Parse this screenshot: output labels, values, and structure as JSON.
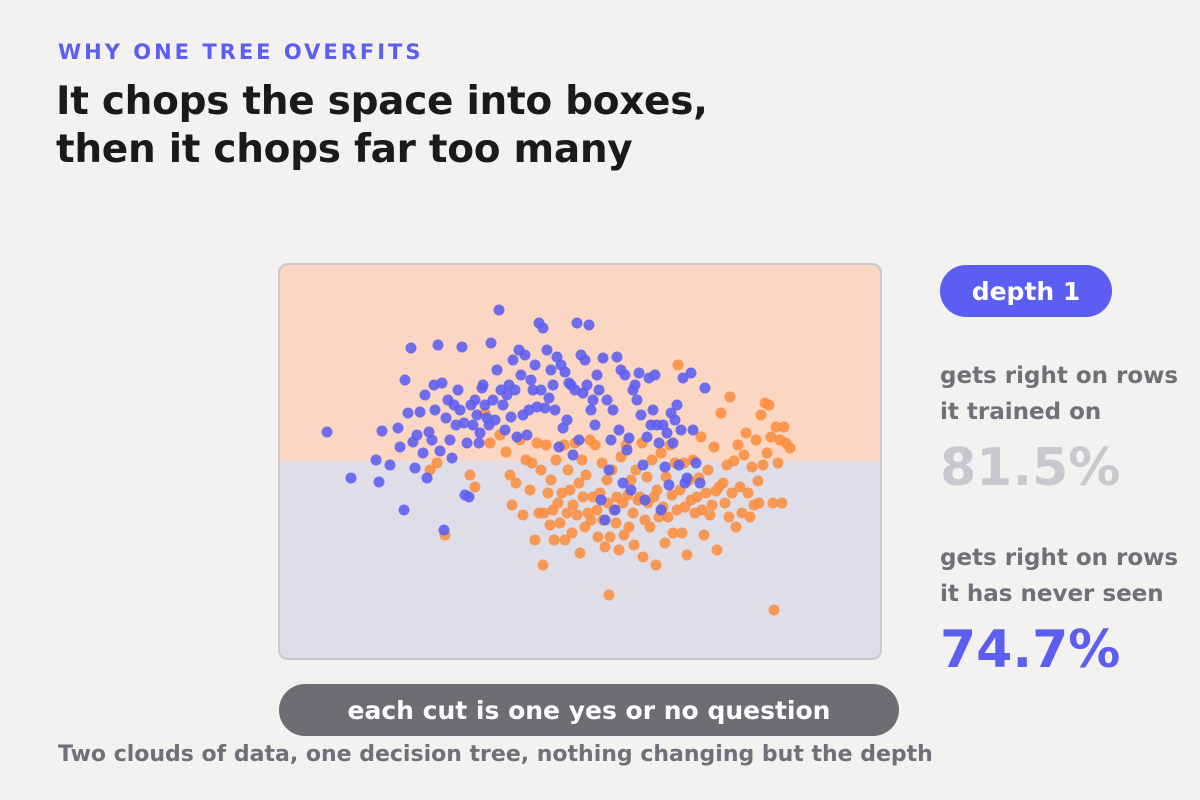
{
  "eyebrow": "WHY ONE TREE OVERFITS",
  "title": {
    "line1": "It chops the space into boxes,",
    "line2": "then it chops far too many"
  },
  "depth_label": "depth 1",
  "train": {
    "label_line1": "gets right on rows",
    "label_line2": "it trained on",
    "value": "81.5%"
  },
  "test": {
    "label_line1": "gets right on rows",
    "label_line2": "it has never seen",
    "value": "74.7%"
  },
  "caption": "each cut is one yes or no question",
  "footer": "Two clouds of data, one decision tree, nothing changing but the depth",
  "colors": {
    "class_a": "#5b5ef0",
    "class_b": "#fb8e3f",
    "region_a": "#fbd6c2",
    "region_b": "#dfdde8",
    "accent": "#5b5ef0",
    "muted": "#c9c8cf"
  },
  "chart_data": {
    "type": "scatter",
    "xlim": [
      0,
      600
    ],
    "ylim": [
      0,
      393
    ],
    "split": {
      "axis": "y",
      "threshold": 196
    },
    "series": [
      {
        "class": "a",
        "points": [
          [
            47,
            167
          ],
          [
            71,
            213
          ],
          [
            96,
            195
          ],
          [
            99,
            217
          ],
          [
            102,
            166
          ],
          [
            110,
            200
          ],
          [
            118,
            163
          ],
          [
            120,
            182
          ],
          [
            124,
            245
          ],
          [
            125,
            115
          ],
          [
            128,
            148
          ],
          [
            131,
            83
          ],
          [
            133,
            177
          ],
          [
            135,
            203
          ],
          [
            137,
            170
          ],
          [
            140,
            147
          ],
          [
            143,
            188
          ],
          [
            145,
            130
          ],
          [
            147,
            213
          ],
          [
            149,
            167
          ],
          [
            152,
            175
          ],
          [
            154,
            120
          ],
          [
            155,
            145
          ],
          [
            158,
            80
          ],
          [
            160,
            186
          ],
          [
            162,
            118
          ],
          [
            164,
            265
          ],
          [
            166,
            153
          ],
          [
            168,
            135
          ],
          [
            170,
            175
          ],
          [
            172,
            193
          ],
          [
            174,
            140
          ],
          [
            176,
            160
          ],
          [
            178,
            125
          ],
          [
            180,
            145
          ],
          [
            182,
            82
          ],
          [
            184,
            158
          ],
          [
            185,
            230
          ],
          [
            187,
            178
          ],
          [
            189,
            232
          ],
          [
            191,
            140
          ],
          [
            193,
            160
          ],
          [
            195,
            135
          ],
          [
            197,
            150
          ],
          [
            199,
            178
          ],
          [
            200,
            168
          ],
          [
            202,
            123
          ],
          [
            203,
            120
          ],
          [
            205,
            140
          ],
          [
            207,
            153
          ],
          [
            209,
            160
          ],
          [
            211,
            78
          ],
          [
            213,
            135
          ],
          [
            215,
            155
          ],
          [
            217,
            105
          ],
          [
            219,
            45
          ],
          [
            221,
            125
          ],
          [
            223,
            140
          ],
          [
            225,
            165
          ],
          [
            227,
            130
          ],
          [
            229,
            120
          ],
          [
            231,
            152
          ],
          [
            233,
            95
          ],
          [
            235,
            125
          ],
          [
            237,
            172
          ],
          [
            239,
            85
          ],
          [
            241,
            110
          ],
          [
            243,
            150
          ],
          [
            245,
            90
          ],
          [
            247,
            170
          ],
          [
            249,
            145
          ],
          [
            251,
            115
          ],
          [
            253,
            125
          ],
          [
            255,
            100
          ],
          [
            257,
            142
          ],
          [
            259,
            58
          ],
          [
            261,
            125
          ],
          [
            263,
            63
          ],
          [
            265,
            143
          ],
          [
            267,
            85
          ],
          [
            269,
            133
          ],
          [
            271,
            105
          ],
          [
            273,
            120
          ],
          [
            275,
            145
          ],
          [
            277,
            92
          ],
          [
            279,
            182
          ],
          [
            281,
            100
          ],
          [
            283,
            163
          ],
          [
            285,
            107
          ],
          [
            287,
            155
          ],
          [
            289,
            118
          ],
          [
            291,
            120
          ],
          [
            293,
            190
          ],
          [
            295,
            125
          ],
          [
            297,
            58
          ],
          [
            299,
            175
          ],
          [
            301,
            90
          ],
          [
            303,
            128
          ],
          [
            305,
            95
          ],
          [
            307,
            120
          ],
          [
            309,
            60
          ],
          [
            311,
            145
          ],
          [
            313,
            135
          ],
          [
            315,
            160
          ],
          [
            317,
            110
          ],
          [
            319,
            125
          ],
          [
            321,
            235
          ],
          [
            323,
            93
          ],
          [
            325,
            255
          ],
          [
            327,
            135
          ],
          [
            329,
            205
          ],
          [
            331,
            175
          ],
          [
            333,
            145
          ],
          [
            335,
            245
          ],
          [
            337,
            92
          ],
          [
            339,
            165
          ],
          [
            341,
            105
          ],
          [
            343,
            218
          ],
          [
            345,
            110
          ],
          [
            347,
            185
          ],
          [
            349,
            173
          ],
          [
            351,
            225
          ],
          [
            353,
            125
          ],
          [
            355,
            120
          ],
          [
            357,
            135
          ],
          [
            359,
            108
          ],
          [
            361,
            150
          ],
          [
            363,
            200
          ],
          [
            365,
            235
          ],
          [
            367,
            172
          ],
          [
            369,
            113
          ],
          [
            371,
            160
          ],
          [
            373,
            145
          ],
          [
            375,
            110
          ],
          [
            377,
            160
          ],
          [
            379,
            178
          ],
          [
            381,
            245
          ],
          [
            383,
            160
          ],
          [
            385,
            202
          ],
          [
            387,
            168
          ],
          [
            389,
            220
          ],
          [
            391,
            148
          ],
          [
            393,
            178
          ],
          [
            395,
            155
          ],
          [
            397,
            140
          ],
          [
            399,
            200
          ],
          [
            401,
            165
          ],
          [
            403,
            113
          ],
          [
            405,
            218
          ],
          [
            407,
            213
          ],
          [
            411,
            108
          ],
          [
            413,
            165
          ],
          [
            416,
            198
          ],
          [
            420,
            218
          ],
          [
            425,
            123
          ]
        ]
      },
      {
        "class": "b",
        "points": [
          [
            150,
            205
          ],
          [
            157,
            198
          ],
          [
            165,
            270
          ],
          [
            190,
            210
          ],
          [
            195,
            222
          ],
          [
            205,
            148
          ],
          [
            210,
            178
          ],
          [
            220,
            170
          ],
          [
            226,
            187
          ],
          [
            230,
            210
          ],
          [
            232,
            240
          ],
          [
            236,
            218
          ],
          [
            240,
            175
          ],
          [
            243,
            250
          ],
          [
            246,
            195
          ],
          [
            250,
            225
          ],
          [
            252,
            198
          ],
          [
            255,
            275
          ],
          [
            257,
            178
          ],
          [
            259,
            248
          ],
          [
            261,
            205
          ],
          [
            263,
            300
          ],
          [
            264,
            248
          ],
          [
            266,
            180
          ],
          [
            268,
            228
          ],
          [
            270,
            260
          ],
          [
            271,
            215
          ],
          [
            273,
            245
          ],
          [
            274,
            275
          ],
          [
            276,
            195
          ],
          [
            278,
            238
          ],
          [
            280,
            258
          ],
          [
            282,
            228
          ],
          [
            284,
            180
          ],
          [
            285,
            275
          ],
          [
            287,
            248
          ],
          [
            288,
            205
          ],
          [
            290,
            225
          ],
          [
            292,
            268
          ],
          [
            293,
            240
          ],
          [
            295,
            178
          ],
          [
            297,
            250
          ],
          [
            299,
            218
          ],
          [
            300,
            288
          ],
          [
            302,
            195
          ],
          [
            303,
            232
          ],
          [
            305,
            262
          ],
          [
            306,
            210
          ],
          [
            308,
            248
          ],
          [
            310,
            175
          ],
          [
            311,
            255
          ],
          [
            313,
            232
          ],
          [
            315,
            180
          ],
          [
            317,
            245
          ],
          [
            318,
            272
          ],
          [
            320,
            228
          ],
          [
            322,
            198
          ],
          [
            323,
            255
          ],
          [
            325,
            282
          ],
          [
            327,
            215
          ],
          [
            328,
            238
          ],
          [
            329,
            330
          ],
          [
            330,
            272
          ],
          [
            332,
            205
          ],
          [
            334,
            245
          ],
          [
            336,
            258
          ],
          [
            337,
            232
          ],
          [
            339,
            285
          ],
          [
            341,
            192
          ],
          [
            343,
            238
          ],
          [
            344,
            270
          ],
          [
            346,
            180
          ],
          [
            348,
            230
          ],
          [
            349,
            262
          ],
          [
            351,
            215
          ],
          [
            353,
            248
          ],
          [
            354,
            280
          ],
          [
            356,
            205
          ],
          [
            358,
            235
          ],
          [
            360,
            232
          ],
          [
            362,
            178
          ],
          [
            363,
            292
          ],
          [
            365,
            255
          ],
          [
            367,
            212
          ],
          [
            368,
            238
          ],
          [
            370,
            262
          ],
          [
            372,
            195
          ],
          [
            374,
            232
          ],
          [
            376,
            300
          ],
          [
            377,
            225
          ],
          [
            379,
            252
          ],
          [
            381,
            188
          ],
          [
            383,
            242
          ],
          [
            385,
            278
          ],
          [
            386,
            212
          ],
          [
            388,
            252
          ],
          [
            390,
            180
          ],
          [
            392,
            230
          ],
          [
            393,
            268
          ],
          [
            395,
            198
          ],
          [
            397,
            245
          ],
          [
            398,
            100
          ],
          [
            400,
            225
          ],
          [
            402,
            268
          ],
          [
            404,
            198
          ],
          [
            405,
            242
          ],
          [
            407,
            290
          ],
          [
            409,
            215
          ],
          [
            411,
            235
          ],
          [
            413,
            195
          ],
          [
            415,
            248
          ],
          [
            417,
            232
          ],
          [
            419,
            213
          ],
          [
            421,
            172
          ],
          [
            422,
            245
          ],
          [
            424,
            270
          ],
          [
            426,
            228
          ],
          [
            428,
            205
          ],
          [
            430,
            250
          ],
          [
            432,
            240
          ],
          [
            434,
            182
          ],
          [
            436,
            226
          ],
          [
            437,
            285
          ],
          [
            439,
            222
          ],
          [
            441,
            148
          ],
          [
            443,
            218
          ],
          [
            445,
            238
          ],
          [
            447,
            200
          ],
          [
            449,
            252
          ],
          [
            450,
            132
          ],
          [
            452,
            228
          ],
          [
            454,
            196
          ],
          [
            456,
            262
          ],
          [
            458,
            180
          ],
          [
            460,
            222
          ],
          [
            462,
            248
          ],
          [
            464,
            190
          ],
          [
            466,
            168
          ],
          [
            468,
            228
          ],
          [
            470,
            252
          ],
          [
            472,
            202
          ],
          [
            474,
            240
          ],
          [
            476,
            175
          ],
          [
            478,
            216
          ],
          [
            479,
            238
          ],
          [
            481,
            150
          ],
          [
            483,
            200
          ],
          [
            485,
            138
          ],
          [
            487,
            188
          ],
          [
            489,
            140
          ],
          [
            491,
            172
          ],
          [
            493,
            238
          ],
          [
            494,
            345
          ],
          [
            496,
            162
          ],
          [
            498,
            198
          ],
          [
            500,
            175
          ],
          [
            502,
            238
          ],
          [
            504,
            162
          ],
          [
            506,
            178
          ],
          [
            510,
            183
          ]
        ]
      }
    ]
  }
}
